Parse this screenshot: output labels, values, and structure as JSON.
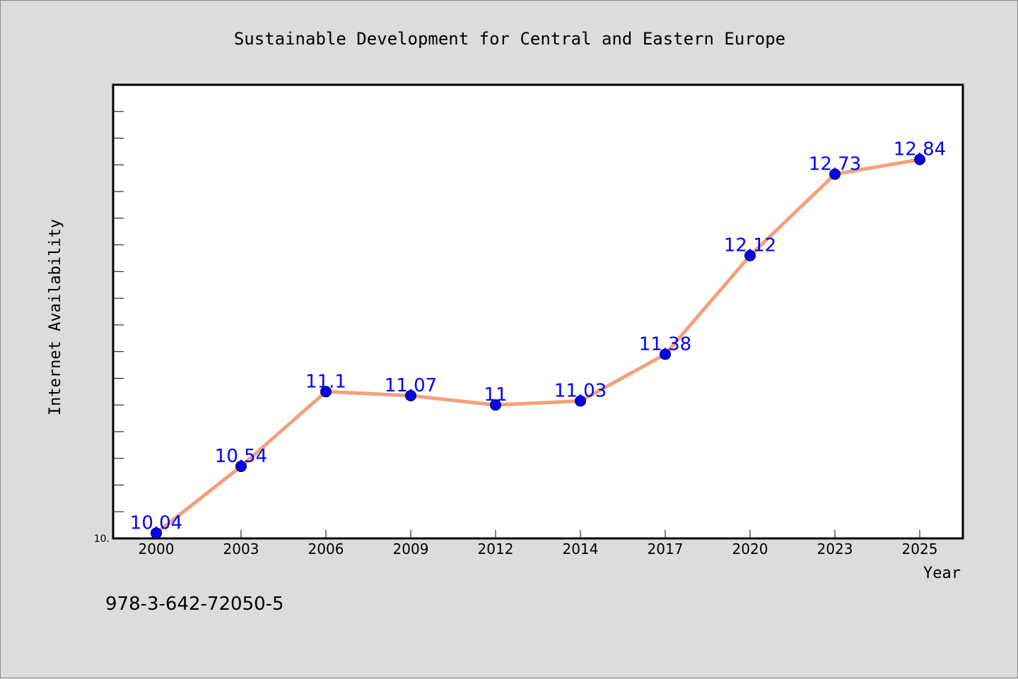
{
  "chart_data": {
    "type": "line",
    "title": "Sustainable Development for Central and Eastern Europe",
    "xlabel": "Year",
    "ylabel": "Internet Availability",
    "categories": [
      "2000",
      "2003",
      "2006",
      "2009",
      "2012",
      "2014",
      "2017",
      "2020",
      "2023",
      "2025"
    ],
    "series": [
      {
        "values": [
          10.04,
          10.54,
          11.1,
          11.07,
          11,
          11.03,
          11.38,
          12.12,
          12.73,
          12.84
        ],
        "data_labels": [
          "10.04",
          "10.54",
          "11.1",
          "11.07",
          "11",
          "11.03",
          "11.38",
          "12.12",
          "12.73",
          "12.84"
        ]
      }
    ],
    "ylim": [
      10,
      13.4
    ],
    "y_tick_label": "10.",
    "y_minor_tick_step": 0.2,
    "grid": false,
    "colors": {
      "line": "#f4a07a",
      "marker": "#0000ee",
      "data_label": "#0000ff",
      "plot_background": "#ffffff",
      "page_background": "#dcdcdc"
    }
  },
  "footer_text": "978-3-642-72050-5"
}
